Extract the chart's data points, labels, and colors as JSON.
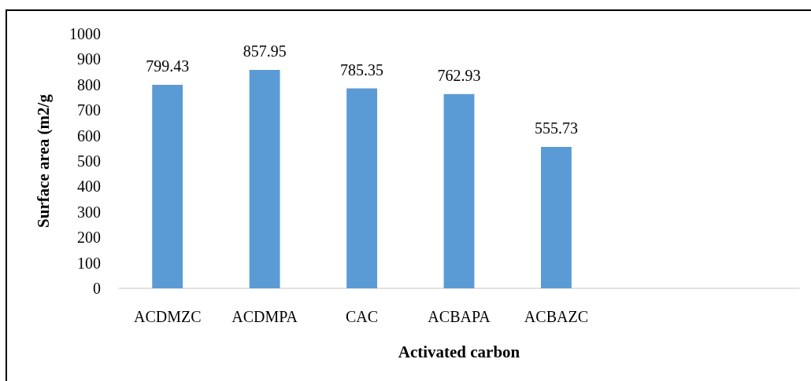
{
  "chart_data": {
    "type": "bar",
    "xlabel": "Activated carbon",
    "ylabel": "Surface area (m2/g",
    "categories": [
      "ACDMZC",
      "ACDMPA",
      "CAC",
      "ACBAPA",
      "ACBAZC",
      null,
      null
    ],
    "values": [
      799.43,
      857.95,
      785.35,
      762.93,
      555.73,
      null,
      null
    ],
    "color": "#5b9bd5",
    "ylim": [
      0,
      1000
    ],
    "yticks": [
      0,
      100,
      200,
      300,
      400,
      500,
      600,
      700,
      800,
      900,
      1000
    ],
    "grid": false,
    "data_labels": true
  }
}
